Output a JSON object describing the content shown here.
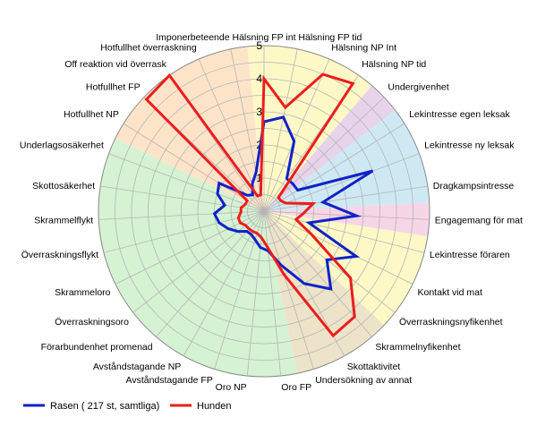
{
  "chart_data": {
    "type": "radar",
    "r_axis": {
      "min": 0,
      "max": 5,
      "ticks": [
        "1",
        "2",
        "3",
        "4",
        "5"
      ]
    },
    "categories": [
      "Hälsning FP int",
      "Hälsning FP tid",
      "Hälsning NP Int",
      "Hälsning NP tid",
      "Undergivenhet",
      "Lekintresse egen leksak",
      "Lekintresse ny leksak",
      "Dragkampsintresse",
      "Engagemang för mat",
      "Lekintresse föraren",
      "Kontakt vid mat",
      "Överraskningsnyfikenhet",
      "Skrammelnyfikenhet",
      "Skottaktivitet",
      "Undersökning av annat",
      "Oro FP",
      "Oro NP",
      "Avståndstagande FP",
      "Avståndstagande NP",
      "Förarbundenhet promenad",
      "Överraskningsoro",
      "Skrammeloro",
      "Överraskningsflykt",
      "Skrammelflykt",
      "Skottosäkerhet",
      "Underlagsosäkerhet",
      "Hotfullhet NP",
      "Hotfullhet FP",
      "Off reaktion vid överrask",
      "Hotfullhet överraskning",
      "Imponerbeteende"
    ],
    "sectors": [
      {
        "from": 0,
        "to": 3,
        "color": "#fdf8c6"
      },
      {
        "from": 4,
        "to": 5,
        "color": "#e7d3ea"
      },
      {
        "from": 5,
        "to": 7,
        "color": "#cfe9f4"
      },
      {
        "from": 8,
        "to": 8,
        "color": "#f6d6e6"
      },
      {
        "from": 9,
        "to": 11,
        "color": "#fdf8c6"
      },
      {
        "from": 12,
        "to": 14,
        "color": "#ede3c9"
      },
      {
        "from": 15,
        "to": 25,
        "color": "#d5f2d3"
      },
      {
        "from": 26,
        "to": 30,
        "color": "#fde4c9"
      }
    ],
    "series": [
      {
        "name": "Rasen ( 217 st, samtliga)",
        "color": "#0f22c8",
        "values": [
          2.7,
          2.9,
          2.3,
          1.2,
          1.2,
          1.2,
          3.5,
          1.8,
          2.8,
          1.4,
          3.1,
          2.4,
          3.1,
          2.5,
          1.7,
          1.2,
          1.1,
          0.9,
          0.8,
          0.8,
          1.0,
          1.2,
          1.4,
          1.5,
          1.2,
          1.5,
          1.6,
          0.7,
          0.6,
          0.9,
          1.2
        ]
      },
      {
        "name": "Hunden",
        "color": "#ee1c1c",
        "values": [
          4.0,
          3.2,
          4.5,
          4.7,
          0.6,
          0.6,
          0.7,
          1.5,
          1.2,
          1.0,
          1.6,
          3.3,
          4.2,
          4.3,
          2.0,
          1.1,
          0.8,
          0.7,
          0.7,
          0.7,
          0.7,
          0.8,
          0.8,
          0.7,
          0.7,
          0.6,
          0.6,
          4.9,
          5.0,
          0.5,
          0.5
        ]
      }
    ]
  }
}
